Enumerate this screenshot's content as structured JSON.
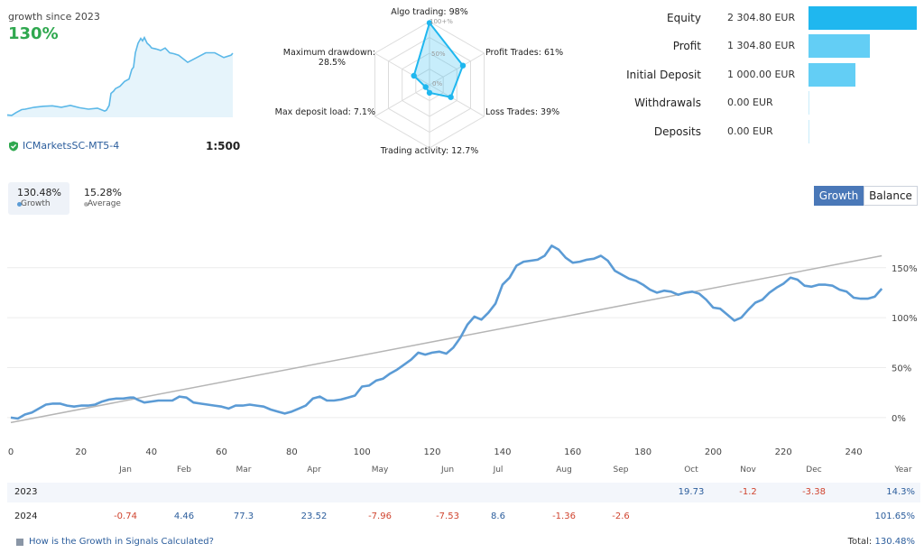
{
  "header": {
    "growth_label": "growth since 2023",
    "growth_value": "130%",
    "broker": "ICMarketsSC-MT5-4",
    "leverage": "1:500"
  },
  "radar": {
    "labels": {
      "algo": "Algo trading: 98%",
      "profit": "Profit Trades: 61%",
      "loss": "Loss Trades: 39%",
      "activity": "Trading activity: 12.7%",
      "load": "Max deposit load: 7.1%",
      "drawdown_1": "Maximum drawdown:",
      "drawdown_2": "28.5%"
    },
    "scale": {
      "full": "100+%",
      "half": "50%",
      "zero": "0%"
    },
    "values": [
      98,
      61,
      39,
      12.7,
      7.1,
      28.5
    ]
  },
  "stats": [
    {
      "label": "Equity",
      "value": "2 304.80 EUR",
      "amount": 2304.8,
      "color": "#1fb7ef"
    },
    {
      "label": "Profit",
      "value": "1 304.80 EUR",
      "amount": 1304.8,
      "color": "#63cef5"
    },
    {
      "label": "Initial Deposit",
      "value": "1 000.00 EUR",
      "amount": 1000.0,
      "color": "#63cef5"
    },
    {
      "label": "Withdrawals",
      "value": "0.00 EUR",
      "amount": 0,
      "color": "#c9ecfa"
    },
    {
      "label": "Deposits",
      "value": "0.00 EUR",
      "amount": 0,
      "color": "#c9ecfa"
    }
  ],
  "legend": {
    "growth_value": "130.48%",
    "growth_name": "Growth",
    "growth_color": "#5b9bd5",
    "average_value": "15.28%",
    "average_name": "Average",
    "average_color": "#b5b5b5"
  },
  "buttons": {
    "growth": "Growth",
    "balance": "Balance"
  },
  "chart_data": {
    "type": "line",
    "xlim": [
      0,
      250
    ],
    "ylim": [
      -20,
      185
    ],
    "x_ticks": [
      0,
      20,
      40,
      60,
      80,
      100,
      120,
      140,
      160,
      180,
      200,
      220,
      240
    ],
    "x_tick_labels": [
      "0",
      "20",
      "40",
      "60",
      "80",
      "100",
      "120",
      "140",
      "160",
      "180",
      "200",
      "220",
      "240"
    ],
    "y_ticks": [
      0,
      50,
      100,
      150
    ],
    "y_tick_labels": [
      "0%",
      "50%",
      "100%",
      "150%"
    ],
    "series": [
      {
        "name": "Growth",
        "color": "#5b9bd5",
        "x": [
          0,
          2,
          4,
          6,
          8,
          10,
          12,
          14,
          16,
          18,
          20,
          22,
          24,
          26,
          28,
          30,
          32,
          34,
          35,
          36,
          38,
          40,
          42,
          44,
          46,
          48,
          50,
          52,
          54,
          56,
          58,
          60,
          62,
          64,
          66,
          68,
          70,
          72,
          74,
          76,
          78,
          80,
          82,
          84,
          86,
          88,
          90,
          92,
          94,
          96,
          98,
          100,
          102,
          104,
          106,
          108,
          110,
          112,
          114,
          116,
          118,
          120,
          122,
          124,
          126,
          128,
          130,
          132,
          134,
          136,
          138,
          140,
          142,
          144,
          146,
          148,
          150,
          152,
          154,
          156,
          158,
          160,
          162,
          164,
          166,
          168,
          170,
          172,
          174,
          176,
          178,
          180,
          182,
          184,
          186,
          188,
          190,
          192,
          194,
          196,
          198,
          200,
          202,
          204,
          206,
          208,
          210,
          212,
          214,
          216,
          218,
          220,
          222,
          224,
          226,
          228,
          230,
          232,
          234,
          236,
          238,
          240,
          242,
          244,
          246,
          248
        ],
        "y": [
          0,
          -1,
          3,
          5,
          9,
          13,
          14,
          14,
          12,
          11,
          12,
          12,
          13,
          16,
          18,
          19,
          19,
          20,
          20,
          18,
          15,
          16,
          17,
          17,
          17,
          21,
          20,
          15,
          14,
          13,
          12,
          11,
          9,
          12,
          12,
          13,
          12,
          11,
          8,
          6,
          4,
          6,
          9,
          12,
          19,
          21,
          17,
          17,
          18,
          20,
          22,
          31,
          32,
          37,
          39,
          44,
          48,
          53,
          58,
          65,
          63,
          65,
          66,
          64,
          70,
          80,
          93,
          101,
          98,
          105,
          114,
          133,
          140,
          152,
          156,
          157,
          158,
          162,
          172,
          168,
          160,
          155,
          156,
          158,
          159,
          162,
          157,
          147,
          143,
          139,
          137,
          133,
          128,
          125,
          127,
          126,
          123,
          125,
          126,
          124,
          118,
          110,
          109,
          103,
          97,
          100,
          108,
          115,
          118,
          125,
          130,
          134,
          140,
          138,
          132,
          131,
          133,
          133,
          132,
          128,
          126,
          120,
          119,
          119,
          121,
          129
        ]
      },
      {
        "name": "Average",
        "color": "#b5b5b5",
        "x": [
          0,
          248
        ],
        "y": [
          -5,
          162
        ]
      }
    ]
  },
  "table": {
    "months": [
      "Jan",
      "Feb",
      "Mar",
      "Apr",
      "May",
      "Jun",
      "Jul",
      "Aug",
      "Sep",
      "Oct",
      "Nov",
      "Dec"
    ],
    "year_header": "Year",
    "rows": [
      {
        "year": "2023",
        "values": [
          "",
          "",
          "",
          "",
          "",
          "",
          "",
          "",
          "",
          "19.73",
          "-1.2",
          "-3.38"
        ],
        "total": "14.3%"
      },
      {
        "year": "2024",
        "values": [
          "-0.74",
          "4.46",
          "77.3",
          "23.52",
          "-7.96",
          "-7.53",
          "8.6",
          "-1.36",
          "-2.6",
          "",
          "",
          ""
        ],
        "total": "101.65%"
      }
    ]
  },
  "footer": {
    "faq": "How is the Growth in Signals Calculated?",
    "total_label": "Total:",
    "total_value": "130.48%"
  },
  "mini_chart": {
    "x": [
      0,
      5,
      10,
      16,
      20,
      30,
      40,
      50,
      60,
      70,
      80,
      90,
      100,
      108,
      110,
      113,
      115,
      118,
      120,
      125,
      130,
      135,
      138,
      140,
      142,
      145,
      148,
      150,
      152,
      155,
      158,
      160,
      165,
      170,
      175,
      180,
      185,
      190,
      200,
      210,
      220,
      230,
      240,
      248,
      250
    ],
    "y": [
      0,
      -1,
      5,
      11,
      12,
      16,
      18,
      19,
      16,
      20,
      15,
      12,
      14,
      8,
      10,
      20,
      45,
      50,
      55,
      60,
      70,
      75,
      95,
      100,
      130,
      150,
      160,
      155,
      162,
      150,
      145,
      140,
      138,
      135,
      140,
      130,
      128,
      125,
      110,
      120,
      130,
      130,
      120,
      125,
      129
    ]
  }
}
